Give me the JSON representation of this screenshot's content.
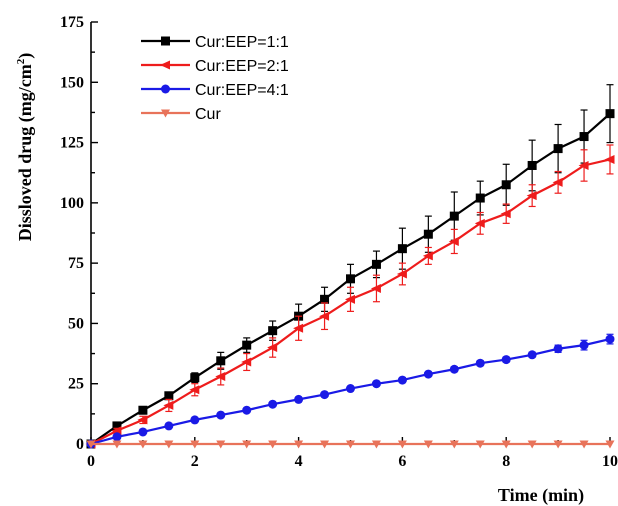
{
  "chart_data": {
    "type": "line",
    "title": "",
    "xlabel": "Time (min)",
    "ylabel": "Dissloved drug (mg/cm",
    "ylabel_superscript": "2",
    "ylabel_suffix": ")",
    "xlim": [
      0,
      10
    ],
    "ylim": [
      0,
      175
    ],
    "xticks": [
      0,
      2,
      4,
      6,
      8,
      10
    ],
    "yticks": [
      0,
      25,
      50,
      75,
      100,
      125,
      150,
      175
    ],
    "grid": false,
    "legend_position": "top-left",
    "x": [
      0,
      0.5,
      1,
      1.5,
      2,
      2.5,
      3,
      3.5,
      4,
      4.5,
      5,
      5.5,
      6,
      6.5,
      7,
      7.5,
      8,
      8.5,
      9,
      9.5,
      10
    ],
    "series": [
      {
        "name": "Cur:EEP=1:1",
        "color": "#000000",
        "marker": "square",
        "values": [
          0,
          7.5,
          14,
          20,
          27.5,
          34.5,
          41,
          47,
          53,
          60,
          68.5,
          74.5,
          81,
          87,
          94.5,
          102,
          107.5,
          115.5,
          122.5,
          127.5,
          137
        ],
        "errors": [
          0,
          1,
          1.5,
          1.5,
          2,
          3.5,
          3,
          4,
          5,
          5,
          6,
          5.5,
          8.5,
          7.5,
          10,
          7,
          8.5,
          10.5,
          10,
          11,
          12
        ]
      },
      {
        "name": "Cur:EEP=2:1",
        "color": "#ee1c1c",
        "marker": "triangle-left",
        "values": [
          0,
          5.5,
          10,
          16,
          22.5,
          28,
          34,
          40,
          48,
          53,
          60,
          64.5,
          70.5,
          78,
          84,
          91.5,
          95.5,
          103,
          108.5,
          115.5,
          118
        ],
        "errors": [
          0,
          1,
          1.5,
          2.5,
          2.5,
          3.5,
          3.5,
          4,
          5,
          5.5,
          5,
          5.5,
          4.5,
          3.5,
          5,
          4.5,
          4,
          4.5,
          4.5,
          6.5,
          6
        ]
      },
      {
        "name": "Cur:EEP=4:1",
        "color": "#1a1ae6",
        "marker": "circle",
        "values": [
          0,
          3,
          5,
          7.5,
          10,
          12,
          14,
          16.5,
          18.5,
          20.5,
          23,
          25,
          26.5,
          29,
          31,
          33.5,
          35,
          37,
          39.5,
          41,
          43.5
        ],
        "errors": [
          0,
          0.5,
          0.5,
          0.5,
          0.5,
          0.5,
          0.5,
          0.5,
          0.5,
          0.5,
          0.5,
          0.5,
          1,
          0.5,
          1,
          1,
          1,
          1,
          1.5,
          2,
          2
        ]
      },
      {
        "name": "Cur",
        "color": "#e8735a",
        "marker": "triangle-down",
        "values": [
          0,
          0,
          0,
          0,
          0,
          0,
          0,
          0,
          0,
          0,
          0,
          0,
          0,
          0,
          0,
          0,
          0,
          0,
          0,
          0,
          0
        ],
        "errors": [
          0,
          0,
          0,
          0,
          0,
          0,
          0,
          0,
          0,
          0,
          0,
          0,
          0,
          0,
          0,
          0,
          0,
          0,
          0,
          0,
          0
        ]
      }
    ]
  }
}
